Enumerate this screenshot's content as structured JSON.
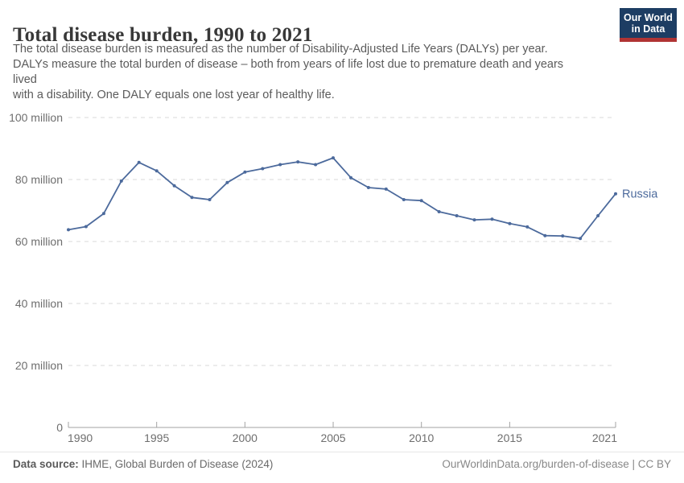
{
  "header": {
    "title": "Total disease burden, 1990 to 2021",
    "subtitle": "The total disease burden is measured as the number of Disability-Adjusted Life Years (DALYs) per year.\nDALYs measure the total burden of disease – both from years of life lost due to premature death and years\nlived\nwith a disability. One DALY equals one lost year of healthy life.",
    "logo": {
      "line1": "Our World",
      "line2": "in Data",
      "bg_color": "#1d3d63",
      "stripe_color": "#b03434"
    }
  },
  "chart_data": {
    "type": "line",
    "title": "Total disease burden, 1990 to 2021",
    "xlabel": "",
    "ylabel": "",
    "xlim": [
      1990,
      2021
    ],
    "ylim": [
      0,
      100000000
    ],
    "grid": true,
    "legend_position": "end-of-line-label",
    "y_ticks": [
      {
        "value": 0,
        "label": "0"
      },
      {
        "value": 20,
        "label": "20 million"
      },
      {
        "value": 40,
        "label": "40 million"
      },
      {
        "value": 60,
        "label": "60 million"
      },
      {
        "value": 80,
        "label": "80 million"
      },
      {
        "value": 100,
        "label": "100 million"
      }
    ],
    "x_ticks": [
      1990,
      1995,
      2000,
      2005,
      2010,
      2015,
      2021
    ],
    "unit_note": "values in millions of DALYs per year",
    "series": [
      {
        "name": "Russia",
        "color": "#4C6A9C",
        "x": [
          1990,
          1991,
          1992,
          1993,
          1994,
          1995,
          1996,
          1997,
          1998,
          1999,
          2000,
          2001,
          2002,
          2003,
          2004,
          2005,
          2006,
          2007,
          2008,
          2009,
          2010,
          2011,
          2012,
          2013,
          2014,
          2015,
          2016,
          2017,
          2018,
          2019,
          2020,
          2021
        ],
        "values_millions": [
          63.8,
          64.8,
          69.0,
          79.5,
          85.5,
          82.8,
          78.0,
          74.2,
          73.5,
          79.0,
          82.4,
          83.5,
          84.8,
          85.7,
          84.8,
          87.0,
          80.6,
          77.4,
          76.9,
          73.5,
          73.2,
          69.6,
          68.3,
          67.0,
          67.2,
          65.8,
          64.7,
          61.9,
          61.8,
          61.0,
          68.3,
          75.4
        ]
      }
    ],
    "colors": {
      "gridline": "#dadada",
      "axis": "#a3a3a3",
      "tick_label": "#6e6e6e"
    }
  },
  "footer": {
    "source_label": "Data source:",
    "source_text": " IHME, Global Burden of Disease (2024)",
    "rights": "OurWorldinData.org/burden-of-disease | CC BY"
  }
}
